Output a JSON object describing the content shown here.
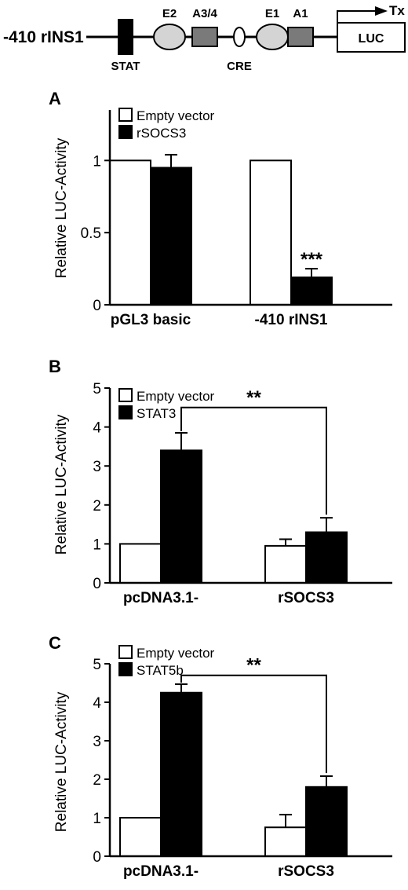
{
  "schematic": {
    "construct_label": "-410 rINS1",
    "elements": [
      {
        "name": "stat",
        "label": "STAT"
      },
      {
        "name": "e2",
        "label": "E2"
      },
      {
        "name": "a3-4",
        "label": "A3/4"
      },
      {
        "name": "cre",
        "label": "CRE"
      },
      {
        "name": "e1",
        "label": "E1"
      },
      {
        "name": "a1",
        "label": "A1"
      }
    ],
    "tx_label": "Tx",
    "reporter_label": "LUC"
  },
  "chart_data": [
    {
      "type": "bar",
      "panel_label": "A",
      "ylabel": "Relative LUC-Activity",
      "ylim": [
        0,
        1.35
      ],
      "yticks": [
        0,
        0.5,
        1
      ],
      "ytick_labels": [
        "0",
        "0.5",
        "1"
      ],
      "categories": [
        "pGL3 basic",
        "-410 rINS1"
      ],
      "series": [
        {
          "name": "Empty vector",
          "color": "#ffffff",
          "values": [
            1.0,
            1.0
          ],
          "errors": [
            0,
            0
          ]
        },
        {
          "name": "rSOCS3",
          "color": "#000000",
          "values": [
            0.95,
            0.19
          ],
          "errors": [
            0.09,
            0.06
          ]
        }
      ],
      "annotations": [
        {
          "text": "***",
          "category_index": 1,
          "series_index": 1
        }
      ],
      "legend_position": "top-left"
    },
    {
      "type": "bar",
      "panel_label": "B",
      "ylabel": "Relative LUC-Activity",
      "ylim": [
        0,
        5
      ],
      "yticks": [
        0,
        1,
        2,
        3,
        4,
        5
      ],
      "ytick_labels": [
        "0",
        "1",
        "2",
        "3",
        "4",
        "5"
      ],
      "categories": [
        "pcDNA3.1-",
        "rSOCS3"
      ],
      "series": [
        {
          "name": "Empty vector",
          "color": "#ffffff",
          "values": [
            1.0,
            0.95
          ],
          "errors": [
            0,
            0.17
          ]
        },
        {
          "name": "STAT3",
          "color": "#000000",
          "values": [
            3.4,
            1.3
          ],
          "errors": [
            0.45,
            0.37
          ]
        }
      ],
      "significance": {
        "text": "**",
        "from": [
          0,
          1
        ],
        "to": [
          1,
          1
        ],
        "y": 4.5
      },
      "legend_position": "top-left"
    },
    {
      "type": "bar",
      "panel_label": "C",
      "ylabel": "Relative LUC-Activity",
      "ylim": [
        0,
        5
      ],
      "yticks": [
        0,
        1,
        2,
        3,
        4,
        5
      ],
      "ytick_labels": [
        "0",
        "1",
        "2",
        "3",
        "4",
        "5"
      ],
      "categories": [
        "pcDNA3.1-",
        "rSOCS3"
      ],
      "series": [
        {
          "name": "Empty vector",
          "color": "#ffffff",
          "values": [
            1.0,
            0.75
          ],
          "errors": [
            0,
            0.33
          ]
        },
        {
          "name": "STAT5b",
          "color": "#000000",
          "values": [
            4.25,
            1.8
          ],
          "errors": [
            0.22,
            0.28
          ]
        }
      ],
      "significance": {
        "text": "**",
        "from": [
          0,
          1
        ],
        "to": [
          1,
          1
        ],
        "y": 4.7
      },
      "legend_position": "top-left"
    }
  ]
}
